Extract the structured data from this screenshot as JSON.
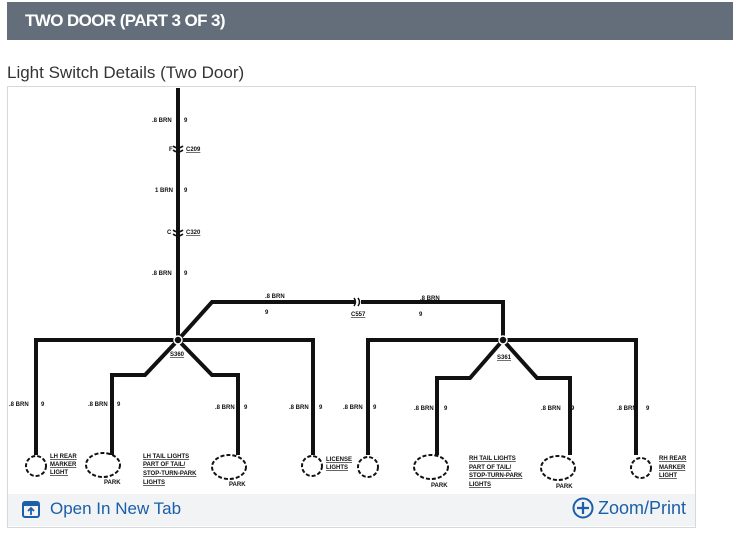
{
  "header": {
    "title": "TWO DOOR (PART 3 OF 3)"
  },
  "section": {
    "title": "Light Switch Details (Two Door)"
  },
  "diagram": {
    "wire_labels": {
      "brn08": ".8 BRN",
      "brn1": "1 BRN",
      "circuit": "9"
    },
    "connectors": {
      "c209": "C209",
      "c209_pin": "F",
      "c320": "C320",
      "c320_pin": "C",
      "c557": "C557"
    },
    "splices": {
      "s360": "S360",
      "s361": "S361"
    },
    "components": {
      "lh_marker": [
        "LH REAR",
        "MARKER",
        "LIGHT"
      ],
      "lh_tail": [
        "LH TAIL LIGHTS",
        "PART OF TAIL/",
        "STOP-TURN-PARK",
        "LIGHTS"
      ],
      "license": [
        "LICENSE",
        "LIGHTS"
      ],
      "rh_tail": [
        "RH TAIL LIGHTS",
        "PART OF TAIL/",
        "STOP-TURN-PARK",
        "LIGHTS"
      ],
      "rh_marker": [
        "RH REAR",
        "MARKER",
        "LIGHT"
      ],
      "park": "PARK"
    }
  },
  "footer": {
    "open_label": "Open In New Tab",
    "zoom_label": "Zoom/Print"
  },
  "colors": {
    "header_bg": "#646e7b",
    "link": "#1a5fa8"
  }
}
